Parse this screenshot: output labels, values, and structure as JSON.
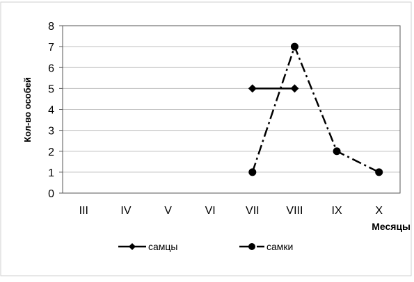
{
  "chart_data": {
    "type": "line",
    "categories": [
      "III",
      "IV",
      "V",
      "VI",
      "VII",
      "VIII",
      "IX",
      "X"
    ],
    "xlabel": "Месяцы",
    "ylabel": "Кол-во особей",
    "ylim": [
      0,
      8
    ],
    "yticks": [
      0,
      1,
      2,
      3,
      4,
      5,
      6,
      7,
      8
    ],
    "grid": true,
    "legend_position": "bottom",
    "series": [
      {
        "name": "самцы",
        "marker": "diamond",
        "line_style": "solid",
        "color": "#000000",
        "values": [
          null,
          null,
          null,
          null,
          5,
          5,
          null,
          null
        ]
      },
      {
        "name": "самки",
        "marker": "circle",
        "line_style": "dash-dot",
        "color": "#000000",
        "values": [
          null,
          null,
          null,
          null,
          1,
          7,
          2,
          1
        ]
      }
    ]
  }
}
